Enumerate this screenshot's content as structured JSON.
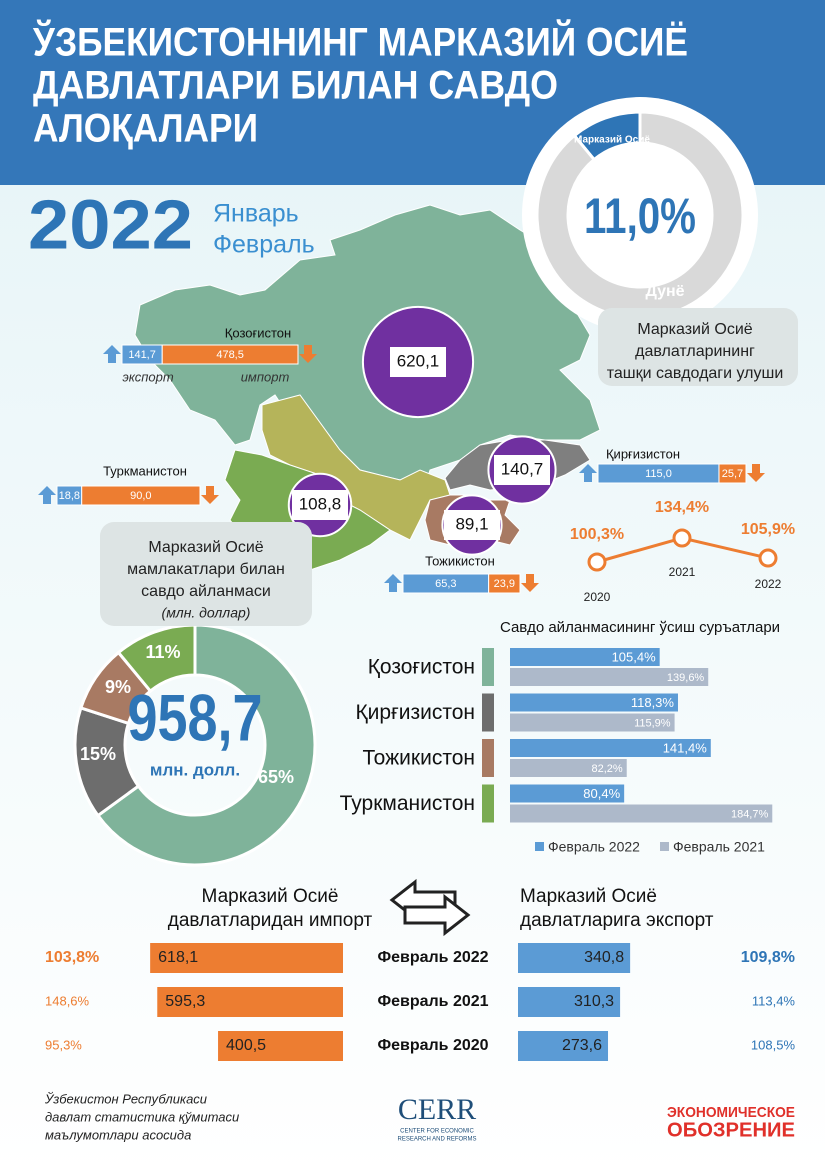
{
  "header": {
    "title": [
      "ЎЗБЕКИСТОННИНГ МАРКАЗИЙ ОСИЁ",
      "ДАВЛАТЛАРИ БИЛАН САВДО",
      "АЛОҚАЛАРИ"
    ]
  },
  "period": {
    "year": "2022",
    "months": [
      "Январь",
      "Февраль"
    ]
  },
  "chart_data": [
    {
      "type": "donut",
      "categories": [
        "Марказий Осиё",
        "Дунё"
      ],
      "values": [
        11.0,
        89.0
      ],
      "colors": [
        "#2e75b6",
        "#d9d9d9"
      ],
      "center_label": "11,0%",
      "caption": [
        "Марказий Осиё",
        "давлатларининг",
        "ташқи савдодаги улуши"
      ]
    },
    {
      "type": "map-bar",
      "categories": [
        "Қозоғистон",
        "Туркманистон",
        "Қирғизистон",
        "Тожикистон"
      ],
      "totals": [
        620.1,
        108.8,
        140.7,
        89.1
      ],
      "total_labels": [
        "620,1",
        "108,8",
        "140,7",
        "89,1"
      ],
      "circle_color": "#7030a0",
      "series": [
        {
          "name": "экспорт",
          "color": "#5b9bd5",
          "values": [
            141.7,
            18.8,
            115.0,
            65.3
          ],
          "value_labels": [
            "141,7",
            "18,8",
            "115,0",
            "65,3"
          ]
        },
        {
          "name": "импорт",
          "color": "#ed7d31",
          "values": [
            478.5,
            90.0,
            25.7,
            23.9
          ],
          "value_labels": [
            "478,5",
            "90,0",
            "25,7",
            "23,9"
          ]
        }
      ]
    },
    {
      "type": "line",
      "categories": [
        "2020",
        "2021",
        "2022"
      ],
      "values": [
        100.3,
        134.4,
        105.9
      ],
      "value_labels": [
        "100,3%",
        "134,4%",
        "105,9%"
      ],
      "color": "#ed7d31"
    },
    {
      "type": "donut",
      "values": [
        65,
        15,
        9,
        11
      ],
      "value_labels": [
        "65%",
        "15%",
        "9%",
        "11%"
      ],
      "colors": [
        "#7fb39a",
        "#6d6d6d",
        "#a87a63",
        "#7aab52"
      ],
      "total_label": "958,7",
      "unit_label": "млн. долл.",
      "caption": [
        "Марказий Осиё",
        "мамлакатлари билан",
        "савдо айланмаси",
        "(млн. доллар)"
      ]
    },
    {
      "type": "bar",
      "title": "Савдо айланмасининг ўсиш суръатлари",
      "categories": [
        "Қозоғистон",
        "Қирғизистон",
        "Тожикистон",
        "Туркманистон"
      ],
      "category_colors": [
        "#7fb39a",
        "#6d6d6d",
        "#a87a63",
        "#7aab52"
      ],
      "series": [
        {
          "name": "Февраль 2022",
          "color": "#5b9bd5",
          "values": [
            105.4,
            118.3,
            141.4,
            80.4
          ],
          "value_labels": [
            "105,4%",
            "118,3%",
            "141,4%",
            "80,4%"
          ]
        },
        {
          "name": "Февраль 2021",
          "color": "#adb9ca",
          "values": [
            139.6,
            115.9,
            82.2,
            184.7
          ],
          "value_labels": [
            "139,6%",
            "115,9%",
            "82,2%",
            "184,7%"
          ]
        }
      ]
    },
    {
      "type": "butterfly",
      "categories": [
        "Февраль 2022",
        "Февраль 2021",
        "Февраль 2020"
      ],
      "series": [
        {
          "title": [
            "Марказий Осиё",
            "давлатларидан импорт"
          ],
          "color": "#ed7d31",
          "text_color": "#ed7d31",
          "values": [
            618.1,
            595.3,
            400.5
          ],
          "value_labels": [
            "618,1",
            "595,3",
            "400,5"
          ],
          "growth_labels": [
            "103,8%",
            "148,6%",
            "95,3%"
          ]
        },
        {
          "title": [
            "Марказий Осиё",
            "давлатларига экспорт"
          ],
          "color": "#5b9bd5",
          "text_color": "#2e75b6",
          "values": [
            340.8,
            310.3,
            273.6
          ],
          "value_labels": [
            "340,8",
            "310,3",
            "273,6"
          ],
          "growth_labels": [
            "109,8%",
            "113,4%",
            "108,5%"
          ]
        }
      ]
    }
  ],
  "footer": {
    "source": [
      "Ўзбекистон Республикаси",
      "давлат статистика қўмитаси",
      "маълумотлари асосида"
    ],
    "logo": "CERR",
    "logo_subtitle": [
      "CENTER FOR ECONOMIC",
      "RESEARCH AND REFORMS"
    ],
    "brand": [
      "ЭКОНОМИЧЕСКОЕ",
      "ОБОЗРЕНИЕ"
    ]
  }
}
